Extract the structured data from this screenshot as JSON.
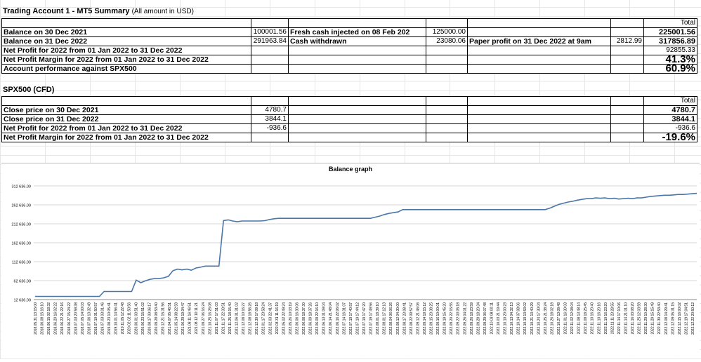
{
  "account": {
    "title": "Trading Account 1 - MT5 Summary",
    "title_sub": "(All amount in USD)",
    "total_header": "Total",
    "rows": [
      {
        "label": "Balance on 30 Dec 2021",
        "c1": "100001.56",
        "c2": "Fresh cash injected on 08 Feb 202",
        "c3": "125000.00",
        "c4": "",
        "c5": "",
        "total": "225001.56"
      },
      {
        "label": "Balance on 31 Dec 2022",
        "c1": "291963.84",
        "c2": "Cash withdrawn",
        "c3": "23080.06",
        "c4": "Paper profit on 31 Dec 2022 at 9am",
        "c5": "2812.99",
        "total": "317856.89"
      },
      {
        "label": "Net Profit for 2022 from 01 Jan 2022 to 31 Dec 2022",
        "c1": "",
        "c2": "",
        "c3": "",
        "c4": "",
        "c5": "",
        "total": "92855.33"
      },
      {
        "label": "Net Profit Margin for 2022 from 01 Jan 2022 to 31 Dec 2022",
        "c1": "",
        "c2": "",
        "c3": "",
        "c4": "",
        "c5": "",
        "total": "41.3%"
      },
      {
        "label": "Account performance against SPX500",
        "c1": "",
        "c2": "",
        "c3": "",
        "c4": "",
        "c5": "",
        "total": "60.9%"
      }
    ]
  },
  "spx": {
    "title": "SPX500 (CFD)",
    "total_header": "Total",
    "rows": [
      {
        "label": "Close price on 30 Dec 2021",
        "c1": "4780.7",
        "total": "4780.7"
      },
      {
        "label": "Close price on 31 Dec 2022",
        "c1": "3844.1",
        "total": "3844.1"
      },
      {
        "label": "Net Profit for 2022 from 01 Jan 2022 to 31 Dec 2022",
        "c1": "-936.6",
        "total": "-936.6"
      },
      {
        "label": "Net Profit Margin for 2022 from 01 Jan 2022 to 31 Dec 2022",
        "c1": "",
        "total": "-19.6%"
      }
    ]
  },
  "chart_data": {
    "type": "line",
    "title": "Balance graph",
    "line_color": "#4a76a8",
    "grid": "horizontal",
    "ylim": [
      12636,
      312636
    ],
    "y_ticks": [
      "12 636.00",
      "62 636.00",
      "112 636.00",
      "162 636.00",
      "212 636.00",
      "262 636.00",
      "312 636.00"
    ],
    "x_ticks": [
      "2018.05.31 13:15:00",
      "2018.06.08 15:16:10",
      "2018.06.15 02:18:32",
      "2018.06.20 16:02:22",
      "2018.06.22 21:22:16",
      "2018.06.27 15:24:22",
      "2018.07.03 20:59:38",
      "2018.07.05 14:00:03",
      "2018.07.06 13:32:49",
      "2018.07.10 01:50:57",
      "2019.07.03 03:01:46",
      "2019.08.23 10:05:41",
      "2019.10.01 14:56:41",
      "2019.11.05 12:22:48",
      "2020.02.02 11:50:56",
      "2020.06.01 03:51:40",
      "2020.06.23 15:51:02",
      "2020.08.17 00:06:17",
      "2020.09.28 08:53:40",
      "2020.12.21 15:31:56",
      "2021.04.07 05:46:51",
      "2021.05.14 08:22:59",
      "2021.06.29 19:34:47",
      "2021.08.11 16:46:51",
      "2021.08.12 10:11:21",
      "2021.09.27 06:16:24",
      "2021.10.25 16:26:08",
      "2021.11.07 17:51:03",
      "2021.11.17 22:33:51",
      "2021.11.25 18:15:40",
      "2021.12.06 01:31:02",
      "2021.12.08 10:16:27",
      "2021.12.08 18:56:26",
      "2021.12.30 17:09:18",
      "2022.01.17 23:58:24",
      "2022.02.03 22:41:37",
      "2022.03.31 11:16:19",
      "2022.05.02 22:49:24",
      "2022.05.26 10:03:19",
      "2022.06.06 16:30:06",
      "2022.06.08 18:37:30",
      "2022.06.09 18:37:26",
      "2022.06.09 22:16:10",
      "2022.06.13 01:09:04",
      "2022.06.14 21:48:04",
      "2022.06.16 22:06:02",
      "2022.07.14 16:31:07",
      "2022.07.19 17:40:57",
      "2022.07.19 17:44:12",
      "2022.07.19 17:47:20",
      "2022.07.19 17:49:56",
      "2022.08.01 18:39:10",
      "2022.08.01 17:12:13",
      "2022.08.04 06:06:26",
      "2022.08.12 04:30:00",
      "2022.08.17 23:08:41",
      "2022.08.22 09:57:57",
      "2022.09.12 21:46:06",
      "2022.09.14 19:15:12",
      "2022.09.15 23:38:25",
      "2022.09.16 10:00:01",
      "2022.09.19 15:45:20",
      "2022.09.20 22:15:55",
      "2022.09.22 03:05:18",
      "2022.09.26 04:01:22",
      "2022.09.26 18:23:59",
      "2022.09.28 18:20:34",
      "2022.09.29 06:07:48",
      "2022.10.03 08:00:11",
      "2022.10.03 21:19:44",
      "2022.10.10 20:00:23",
      "2022.10.13 04:32:13",
      "2022.10.14 07:08:06",
      "2022.10.19 13:53:02",
      "2022.10.21 13:40:29",
      "2022.10.24 17:30:04",
      "2022.10.25 21:38:24",
      "2022.10.26 18:02:18",
      "2022.10.27 13:09:48",
      "2022.11.01 16:30:03",
      "2022.11.02 12:08:04",
      "2022.11.08 13:48:14",
      "2022.11.09 18:25:45",
      "2022.11.10 16:20:40",
      "2022.11.10 16:20:16",
      "2022.11.10 16:23:20",
      "2022.11.11 23:28:55",
      "2022.11.14 17:10:06",
      "2022.11.14 21:01:10",
      "2022.11.16 03:08:20",
      "2022.11.25 12:03:59",
      "2022.11.29 10:28:30",
      "2022.11.29 15:15:49",
      "2022.11.30 22:53:40",
      "2022.12.08 14:29:41",
      "2022.12.09 05:31:15",
      "2022.12.15 16:00:02",
      "2022.12.19 17:04:51",
      "2022.12.22 20:50:12"
    ],
    "x_tick_count_note": "",
    "series": [
      {
        "values": [
          21000,
          21000,
          21000,
          21000,
          21000,
          21000,
          21000,
          21000,
          21000,
          21000,
          21000,
          21000,
          21000,
          21000,
          21000,
          34000,
          34000,
          34000,
          34000,
          34000,
          34000,
          34000,
          64000,
          57000,
          62000,
          66000,
          68000,
          68000,
          70000,
          74000,
          89000,
          93000,
          91000,
          93000,
          90000,
          96000,
          98000,
          101000,
          101000,
          101000,
          101000,
          221000,
          223000,
          220000,
          218000,
          220000,
          220000,
          220000,
          220000,
          220000,
          221000,
          224000,
          226000,
          227000,
          227000,
          227000,
          227000,
          227000,
          227000,
          227000,
          227000,
          227000,
          227000,
          227000,
          227000,
          227000,
          227000,
          227000,
          227000,
          227000,
          227000,
          227000,
          227000,
          227000,
          230000,
          233000,
          237000,
          240000,
          242000,
          244000,
          250000,
          250000,
          250000,
          250000,
          250000,
          250000,
          250000,
          250000,
          250000,
          250000,
          250000,
          250000,
          250000,
          250000,
          250000,
          250000,
          250000,
          250000,
          250000,
          250000,
          250000,
          250000,
          250000,
          250000,
          250000,
          250000,
          250000,
          250000,
          250000,
          250000,
          250000,
          250000,
          254000,
          259000,
          264000,
          267000,
          270000,
          272000,
          275000,
          277000,
          279000,
          279000,
          281000,
          280000,
          281000,
          279000,
          280000,
          278000,
          279000,
          280000,
          279000,
          281000,
          281000,
          283000,
          285000,
          286000,
          287000,
          288000,
          288000,
          289000,
          290000,
          290000,
          291000,
          292000,
          293000
        ]
      }
    ]
  }
}
